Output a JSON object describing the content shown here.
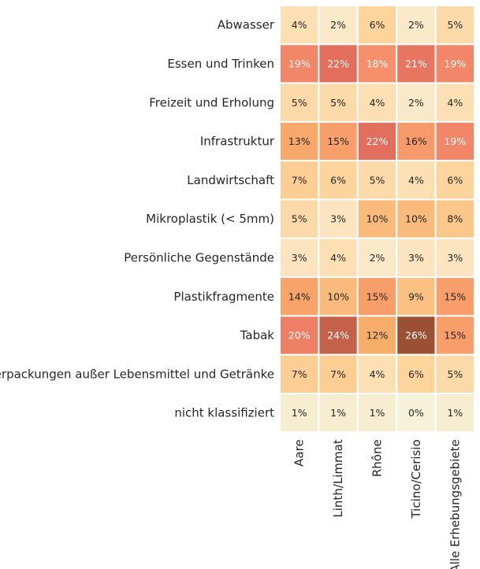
{
  "chart_data": {
    "type": "heatmap",
    "rows": [
      "Abwasser",
      "Essen und Trinken",
      "Freizeit und Erholung",
      "Infrastruktur",
      "Landwirtschaft",
      "Mikroplastik (< 5mm)",
      "Persönliche Gegenstände",
      "Plastikfragmente",
      "Tabak",
      "Verpackungen außer Lebensmittel und Getränke",
      "nicht klassifiziert"
    ],
    "columns": [
      "Aare",
      "Linth/Limmat",
      "Rhône",
      "Ticino/Cerisio",
      "Alle Erhebungsgebiete"
    ],
    "values": [
      [
        4,
        2,
        6,
        2,
        5
      ],
      [
        19,
        22,
        18,
        21,
        19
      ],
      [
        5,
        5,
        4,
        2,
        4
      ],
      [
        13,
        15,
        22,
        16,
        19
      ],
      [
        7,
        6,
        5,
        4,
        6
      ],
      [
        5,
        3,
        10,
        10,
        8
      ],
      [
        3,
        4,
        2,
        3,
        3
      ],
      [
        14,
        10,
        15,
        9,
        15
      ],
      [
        20,
        24,
        12,
        26,
        15
      ],
      [
        7,
        7,
        4,
        6,
        5
      ],
      [
        1,
        1,
        1,
        0,
        1
      ]
    ],
    "labels": [
      [
        "4%",
        "2%",
        "6%",
        "2%",
        "5%"
      ],
      [
        "19%",
        "22%",
        "18%",
        "21%",
        "19%"
      ],
      [
        "5%",
        "5%",
        "4%",
        "2%",
        "4%"
      ],
      [
        "13%",
        "15%",
        "22%",
        "16%",
        "19%"
      ],
      [
        "7%",
        "6%",
        "5%",
        "4%",
        "6%"
      ],
      [
        "5%",
        "3%",
        "10%",
        "10%",
        "8%"
      ],
      [
        "3%",
        "4%",
        "2%",
        "3%",
        "3%"
      ],
      [
        "14%",
        "10%",
        "15%",
        "9%",
        "15%"
      ],
      [
        "20%",
        "24%",
        "12%",
        "26%",
        "15%"
      ],
      [
        "7%",
        "7%",
        "4%",
        "6%",
        "5%"
      ],
      [
        "1%",
        "1%",
        "1%",
        "0%",
        "1%"
      ]
    ],
    "value_range": [
      0,
      26
    ],
    "colormap": {
      "stops": [
        "#f5f2d9",
        "#fbe4bf",
        "#fdd49c",
        "#f7ad6a",
        "#f68f6b",
        "#e26e5d",
        "#c4614a",
        "#9b5034"
      ],
      "stop_values": [
        0,
        3,
        6,
        12,
        18,
        22,
        24,
        26
      ]
    },
    "grid_color": "#ffffff",
    "text_color_dark": "#262626",
    "text_color_light": "#ffffff",
    "light_text_threshold": 18,
    "colorbar": false,
    "legend": false
  }
}
